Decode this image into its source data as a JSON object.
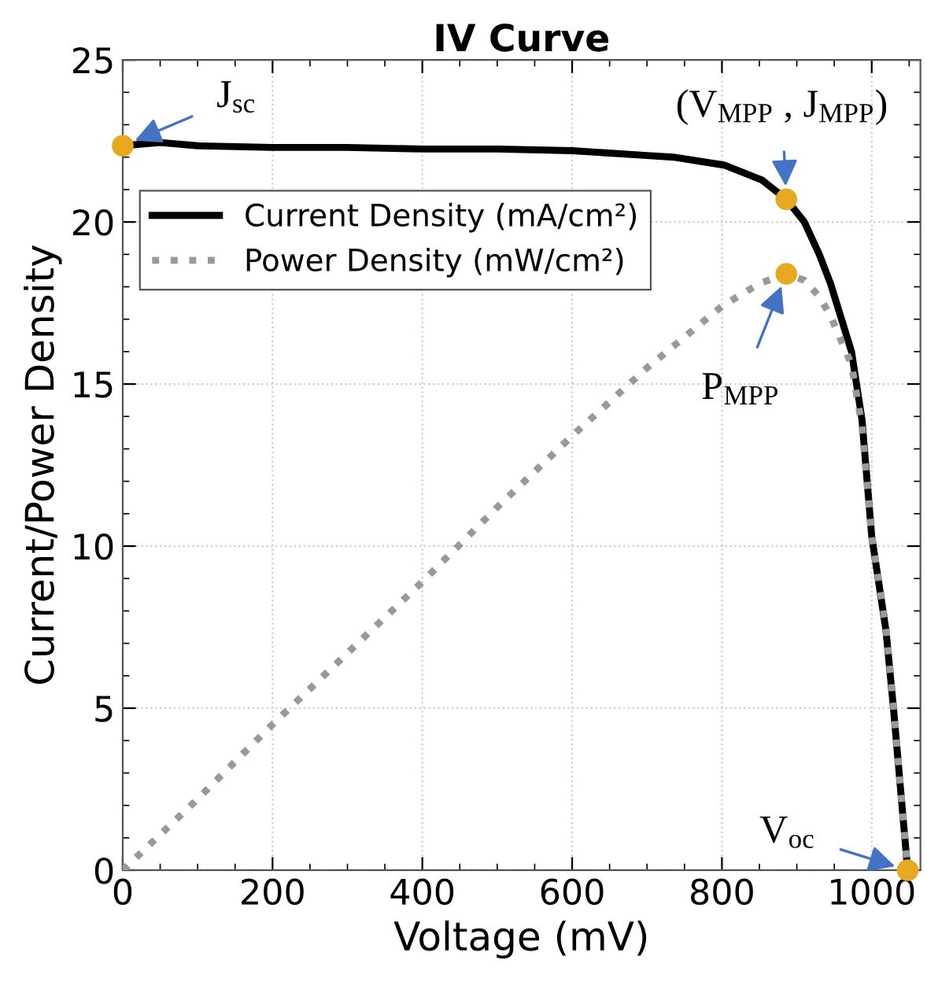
{
  "chart_data": {
    "type": "line",
    "title": "IV Curve",
    "xlabel": "Voltage (mV)",
    "ylabel": "Current/Power Density",
    "xlim": [
      0,
      1065
    ],
    "xticks": [
      0,
      200,
      400,
      600,
      800,
      1000
    ],
    "ylim": [
      0,
      25
    ],
    "yticks": [
      0,
      5,
      10,
      15,
      20,
      25
    ],
    "grid": true,
    "legend": "top left",
    "series": [
      {
        "name": "Current Density (mA/cm²)",
        "color": "#000000",
        "line_style": "solid",
        "x": [
          0,
          50,
          100,
          200,
          300,
          400,
          500,
          600,
          700,
          735,
          804,
          853,
          886,
          910,
          930,
          945,
          973,
          987,
          1000,
          1019,
          1029,
          1048
        ],
        "values": [
          22.35,
          22.45,
          22.35,
          22.3,
          22.3,
          22.25,
          22.25,
          22.2,
          22.05,
          22.0,
          21.75,
          21.3,
          20.7,
          20.0,
          19.0,
          18.1,
          16.0,
          13.9,
          10.3,
          7.4,
          5.0,
          0
        ]
      },
      {
        "name": "Power Density (mW/cm²)",
        "color": "#999999",
        "line_style": "dotted",
        "x": [
          0,
          100,
          200,
          300,
          400,
          500,
          600,
          700,
          800,
          850,
          886,
          910,
          930,
          945,
          973,
          987,
          1000,
          1019,
          1029,
          1048
        ],
        "values": [
          0,
          2.2,
          4.5,
          6.7,
          8.9,
          11.2,
          13.4,
          15.5,
          17.4,
          18.1,
          18.4,
          18.2,
          17.7,
          17.1,
          15.6,
          13.7,
          10.3,
          7.5,
          5.1,
          0
        ]
      },
      {
        "type": "scatter",
        "color": "#e8a920",
        "marker": "circle",
        "x": [
          0,
          886,
          886,
          1048
        ],
        "values": [
          22.35,
          20.7,
          18.4,
          0
        ]
      }
    ],
    "annotations": [
      {
        "text": "J$_{sc}$",
        "x": 0,
        "y": 22.35
      },
      {
        "text": "(V$_{MPP}$ , J$_{MPP}$)",
        "x": 886,
        "y": 20.7
      },
      {
        "text": "P$_{MPP}$",
        "x": 886,
        "y": 18.4
      },
      {
        "text": "V$_{oc}$",
        "x": 1048,
        "y": 0
      }
    ]
  }
}
